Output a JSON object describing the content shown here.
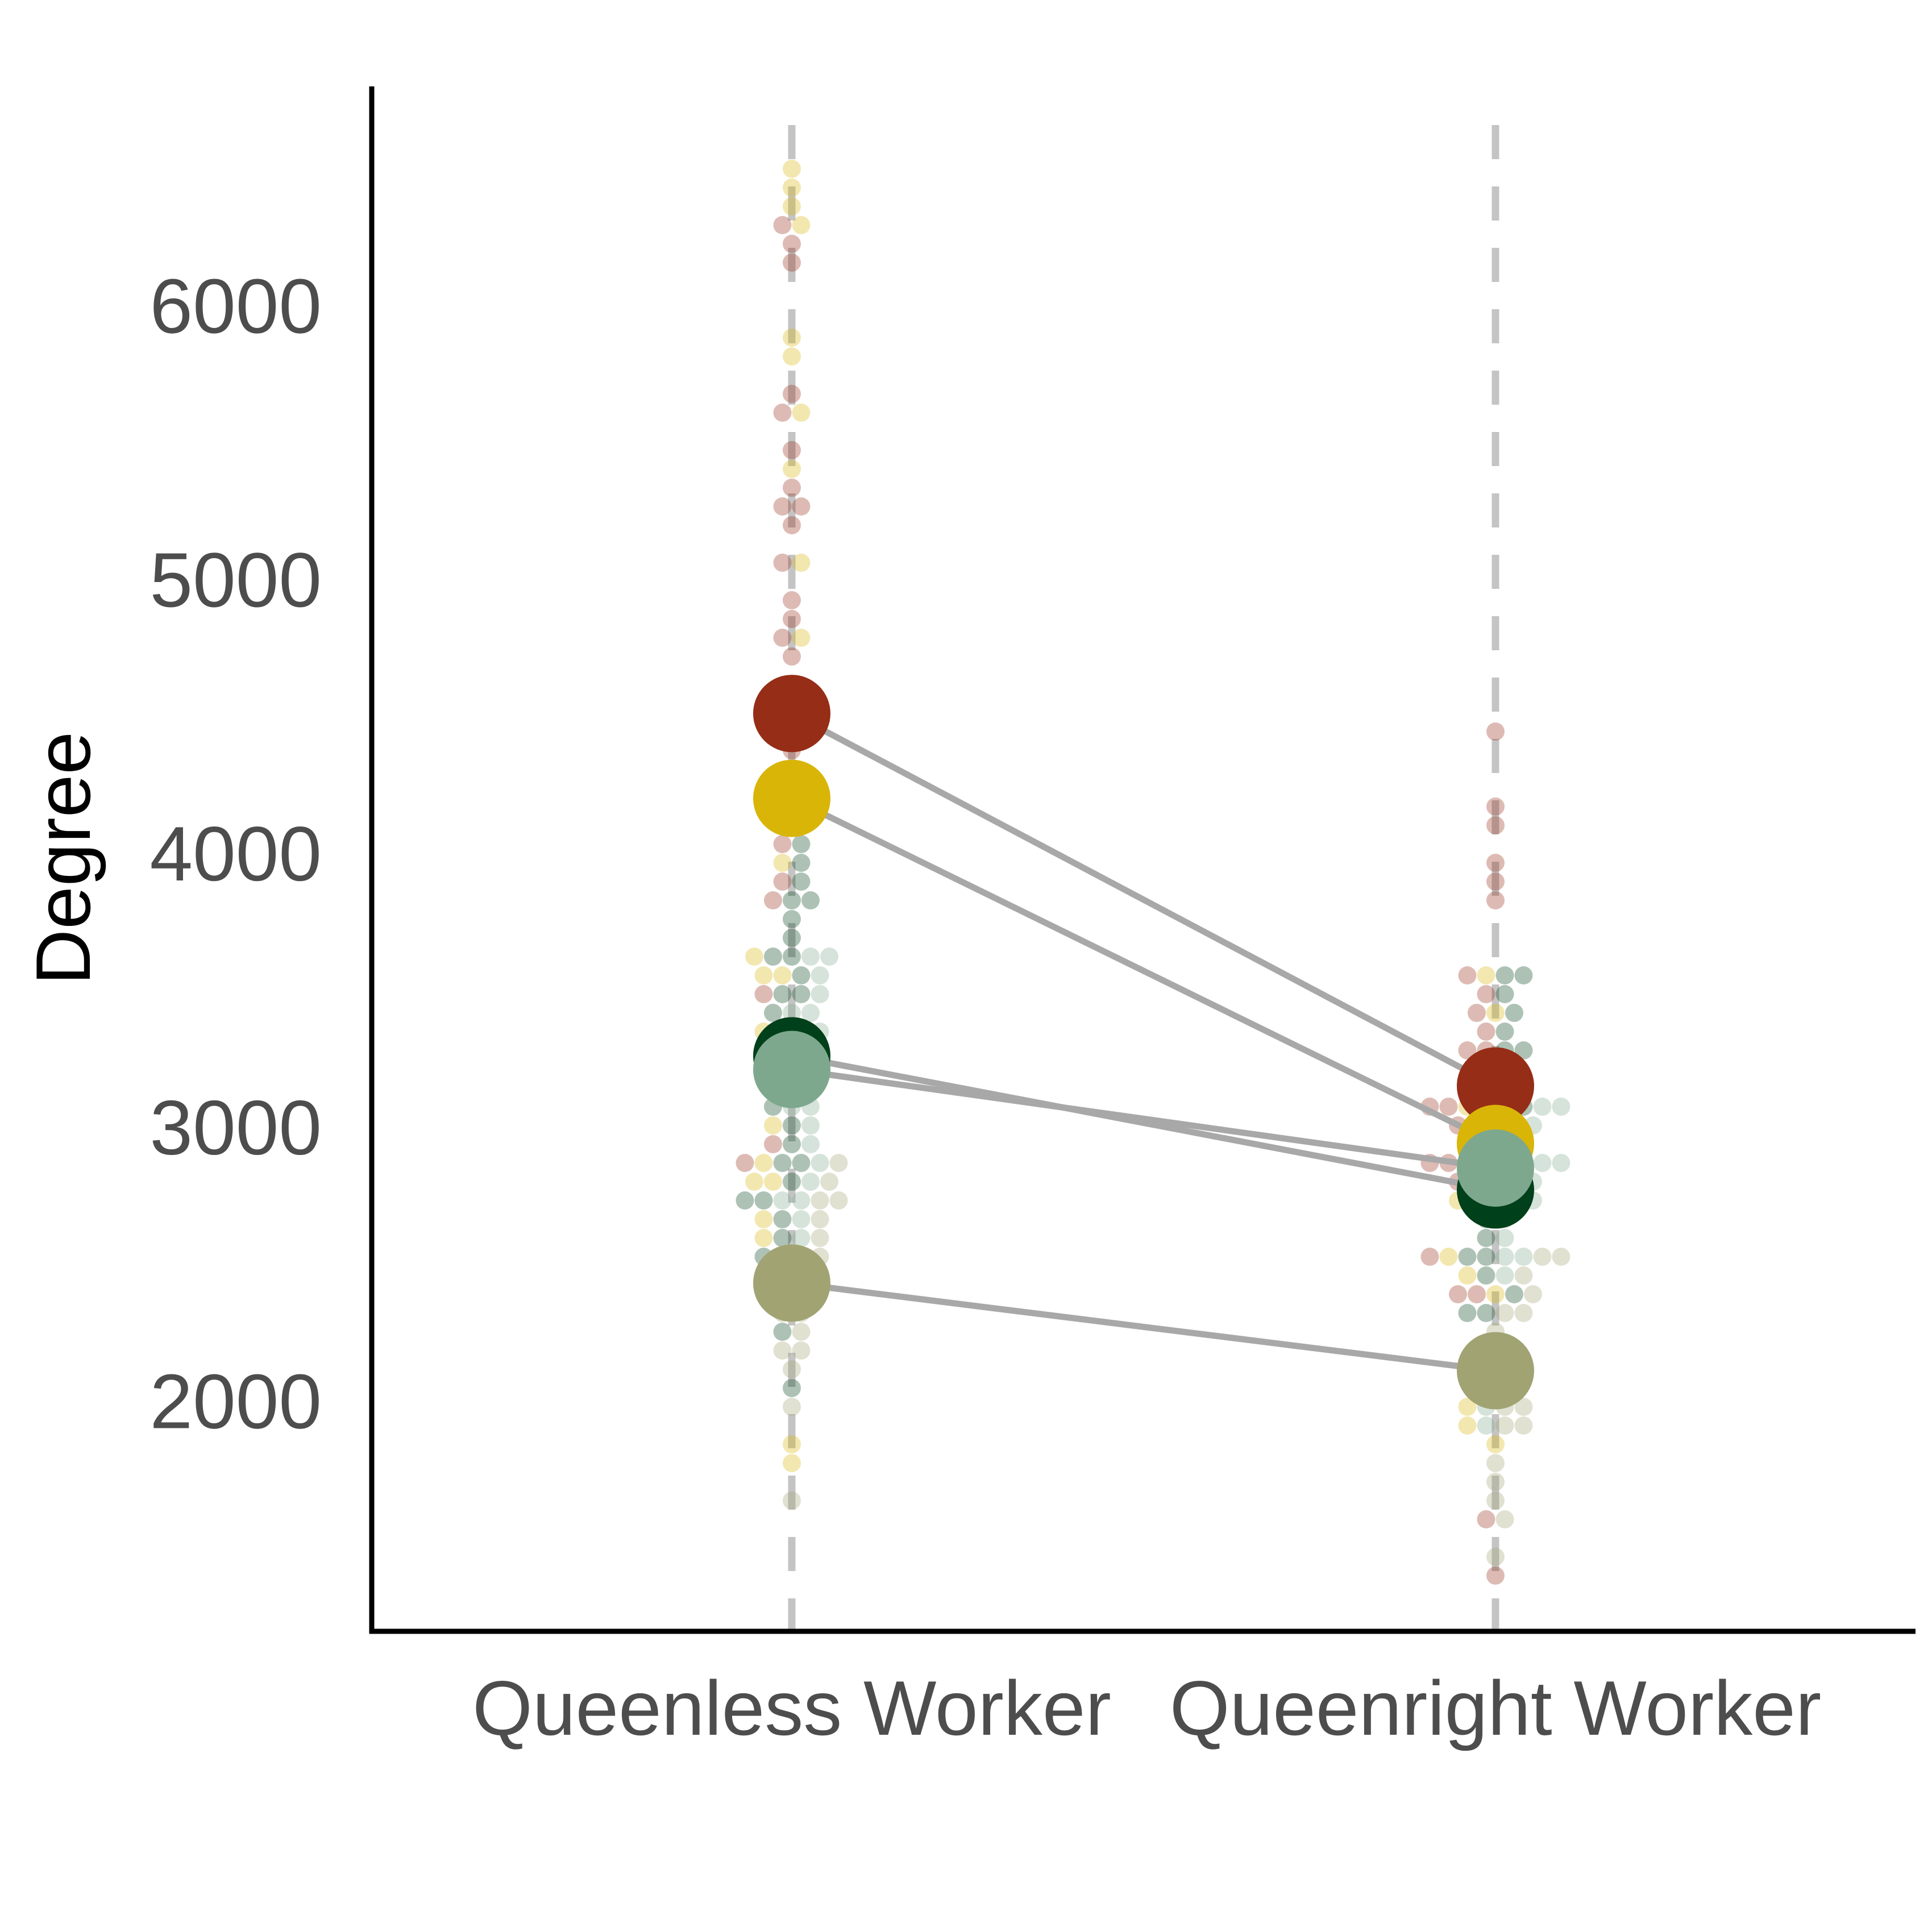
{
  "chart_data": {
    "type": "scatter",
    "subtype": "paired beeswarm with group means",
    "title": "",
    "xlabel": "",
    "ylabel": "Degree",
    "categories": [
      "Queenless Worker",
      "Queenright Worker"
    ],
    "y_ticks": [
      2000,
      3000,
      4000,
      5000,
      6000
    ],
    "ylim": [
      1150,
      6800
    ],
    "grid": false,
    "legend": "none",
    "colors": {
      "red": "#962d16",
      "gold": "#d9b508",
      "darkgreen": "#00401a",
      "sage": "#7ea88d",
      "olive": "#a1a373",
      "connector": "#a8a8a8",
      "guide": "#c4c4c4",
      "axis": "#000000",
      "tick_text": "#4d4d4d"
    },
    "series": [
      {
        "color_key": "red",
        "mean": {
          "Queenless Worker": 4510,
          "Queenright Worker": 3150
        },
        "points": {
          "Queenless Worker": [
            6290,
            6220,
            6170,
            5710,
            5600,
            5500,
            5360,
            5300,
            5260,
            5200,
            5050,
            4940,
            4880,
            4780,
            4700,
            4390,
            4050,
            3930,
            3860,
            3480,
            3270,
            2920,
            2840
          ],
          "Queenright Worker": [
            4420,
            4160,
            4100,
            3980,
            3900,
            3860,
            3530,
            3480,
            3400,
            3350,
            3300,
            3250,
            3200,
            3150,
            3100,
            3050,
            3000,
            2980,
            2950,
            2900,
            2850,
            2800,
            2780,
            2500,
            2400,
            2400,
            1600,
            1340
          ]
        }
      },
      {
        "color_key": "gold",
        "mean": {
          "Queenless Worker": 4200,
          "Queenright Worker": 2940
        },
        "points": {
          "Queenless Worker": [
            6500,
            6460,
            6370,
            6270,
            5900,
            5800,
            5600,
            5390,
            5050,
            4770,
            4580,
            4470,
            3950,
            3640,
            3580,
            3520,
            3330,
            2980,
            2900,
            2830,
            2790,
            2650,
            2600,
            1840,
            1790
          ],
          "Queenright Worker": [
            3530,
            3450,
            3200,
            3150,
            3100,
            3050,
            3000,
            2980,
            2950,
            2900,
            2850,
            2800,
            2750,
            2700,
            2520,
            2480,
            2420,
            1960,
            1920,
            1860
          ]
        }
      },
      {
        "color_key": "darkgreen",
        "mean": {
          "Queenless Worker": 3260,
          "Queenright Worker": 2770
        },
        "points": {
          "Queenless Worker": [
            4020,
            3950,
            3900,
            3860,
            3820,
            3760,
            3700,
            3650,
            3600,
            3550,
            3500,
            3480,
            3420,
            3380,
            3320,
            3260,
            3200,
            3150,
            3120,
            3080,
            3000,
            2960,
            2900,
            2840,
            2790,
            2750,
            2700,
            2660,
            2600,
            2550,
            2500,
            2260,
            2060
          ],
          "Queenright Worker": [
            3580,
            3520,
            3460,
            3400,
            3350,
            3300,
            3250,
            3150,
            3100,
            3050,
            2970,
            2900,
            2850,
            2780,
            2720,
            2640,
            2580,
            2520,
            2500,
            2450,
            2400,
            2350,
            2300,
            2200,
            2080
          ]
        }
      },
      {
        "color_key": "sage",
        "mean": {
          "Queenless Worker": 3210,
          "Queenright Worker": 2850
        },
        "points": {
          "Queenless Worker": [
            3650,
            3600,
            3560,
            3500,
            3450,
            3400,
            3350,
            3300,
            3250,
            3200,
            3150,
            3100,
            3050,
            2980,
            2920,
            2880,
            2800,
            2750,
            2700,
            2650,
            2600
          ],
          "Queenright Worker": [
            3200,
            3150,
            3100,
            3050,
            3000,
            2950,
            2900,
            2850,
            2800,
            2750,
            2700,
            2650,
            2600,
            2550,
            2500,
            2450,
            1980,
            1920
          ]
        }
      },
      {
        "color_key": "olive",
        "mean": {
          "Queenless Worker": 2430,
          "Queenright Worker": 2110
        },
        "points": {
          "Queenless Worker": [
            2880,
            2820,
            2760,
            2700,
            2660,
            2620,
            2560,
            2500,
            2450,
            2400,
            2350,
            2300,
            2260,
            2200,
            2150,
            2100,
            2000,
            1620
          ],
          "Queenright Worker": [
            2560,
            2520,
            2460,
            2400,
            2350,
            2300,
            2250,
            2200,
            2150,
            2100,
            2050,
            2000,
            1960,
            1920,
            1880,
            1760,
            1720,
            1640,
            1560,
            1460
          ]
        }
      }
    ]
  }
}
